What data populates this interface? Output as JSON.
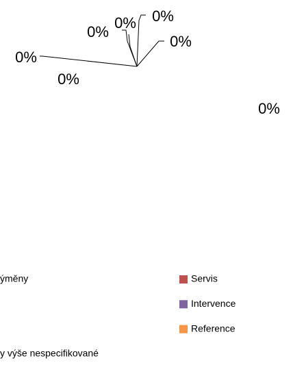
{
  "chart_data": {
    "type": "pie",
    "categories": [
      "ýměny",
      "Servis",
      null,
      "Intervence",
      null,
      "Reference",
      "y výše nespecifikované"
    ],
    "values": [
      0,
      0,
      0,
      0,
      0,
      0,
      0
    ],
    "value_labels": [
      "0%",
      "0%",
      "0%",
      "0%",
      "0%",
      "0%",
      "0%"
    ],
    "colors": [
      "#4f81bd",
      "#c0504d",
      "#9bbb59",
      "#8064a2",
      "#4bacc6",
      "#f79646",
      "#2c4d75"
    ]
  }
}
